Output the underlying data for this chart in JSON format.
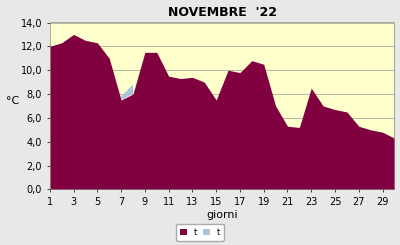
{
  "title": "NOVEMBRE  '22",
  "xlabel": "giorni",
  "ylabel": "°C",
  "ylim": [
    0,
    14
  ],
  "yticks": [
    0.0,
    2.0,
    4.0,
    6.0,
    8.0,
    10.0,
    12.0,
    14.0
  ],
  "ytick_labels": [
    "0,0",
    "2,0",
    "4,0",
    "6,0",
    "8,0",
    "10,0",
    "12,0",
    "14,0"
  ],
  "xticks": [
    1,
    3,
    5,
    7,
    9,
    11,
    13,
    15,
    17,
    19,
    21,
    23,
    25,
    27,
    29
  ],
  "days": [
    1,
    2,
    3,
    4,
    5,
    6,
    7,
    8,
    9,
    10,
    11,
    12,
    13,
    14,
    15,
    16,
    17,
    18,
    19,
    20,
    21,
    22,
    23,
    24,
    25,
    26,
    27,
    28,
    29,
    30
  ],
  "tmax": [
    12.0,
    12.3,
    13.0,
    12.5,
    12.3,
    11.0,
    7.5,
    8.0,
    11.5,
    11.5,
    9.5,
    9.3,
    9.4,
    9.0,
    7.5,
    10.0,
    9.8,
    10.8,
    10.5,
    7.0,
    5.3,
    5.2,
    8.5,
    7.0,
    6.7,
    6.5,
    5.3,
    5.0,
    4.8,
    4.3
  ],
  "tmin": [
    11.5,
    11.8,
    12.5,
    11.8,
    12.0,
    10.5,
    7.8,
    8.8,
    10.5,
    10.5,
    9.0,
    9.0,
    8.8,
    8.5,
    7.0,
    9.2,
    9.5,
    10.2,
    10.2,
    6.5,
    5.8,
    5.0,
    7.5,
    6.2,
    6.0,
    6.0,
    5.5,
    4.8,
    5.2,
    3.8
  ],
  "color_max": "#800040",
  "color_min": "#aac4e0",
  "bg_color": "#ffffcc",
  "fig_color": "#e8e8e8",
  "title_fontsize": 9,
  "axis_fontsize": 7,
  "label_fontsize": 8
}
